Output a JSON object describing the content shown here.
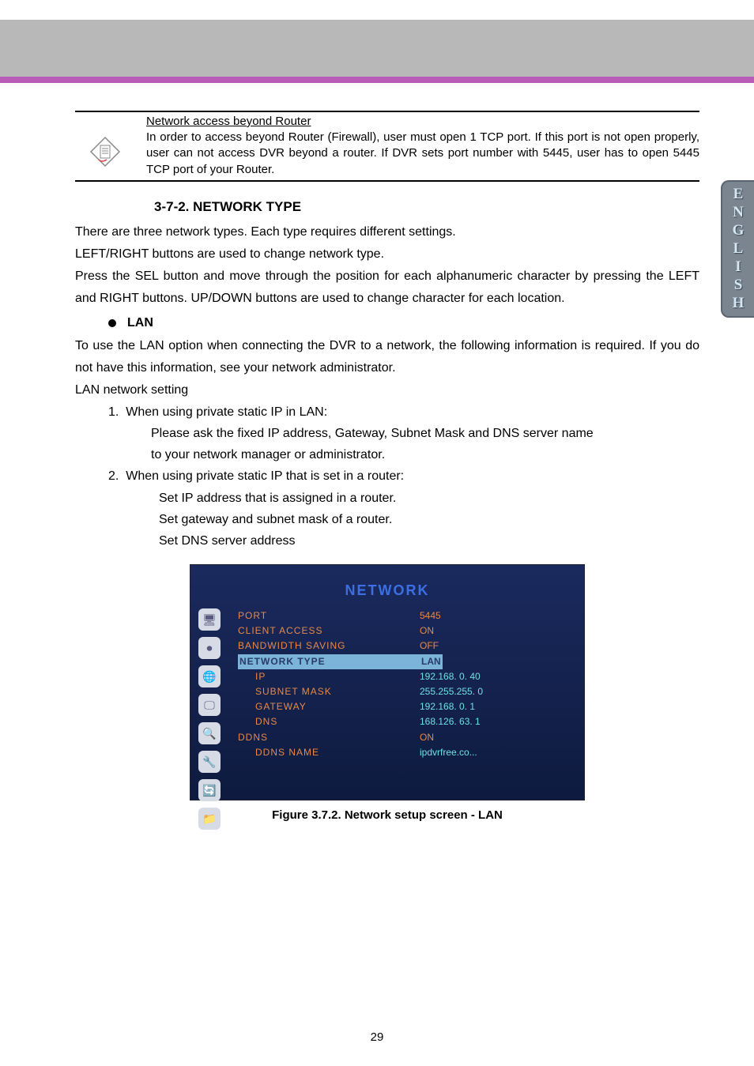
{
  "note": {
    "title": "Network access beyond Router",
    "body": "In order to access beyond Router (Firewall), user must open 1 TCP port. If this port is not open properly, user can not access DVR beyond a router. If DVR sets port number with 5445, user has to open 5445 TCP port of your Router."
  },
  "section_heading": "3-7-2. NETWORK TYPE",
  "para1": "There are three network types. Each type requires different settings.",
  "para2": "LEFT/RIGHT buttons are used to change network type.",
  "para3": "Press the SEL button and move through the position for each alphanumeric character by pressing the LEFT and RIGHT buttons. UP/DOWN buttons are used to change character for each location.",
  "bullet_lan": "LAN",
  "lan_intro": "To use the LAN option when connecting the DVR to a network, the following information is required. If you do not have this information, see your network administrator.",
  "lan_setting_title": "LAN network setting",
  "list1_num": "1.",
  "list1_text": "When using private static IP in LAN:",
  "list1_a": "Please ask the fixed IP address, Gateway, Subnet Mask and DNS server name",
  "list1_b": "to your network manager or administrator.",
  "list2_num": "2.",
  "list2_text": "When using private static IP that is set in a router:",
  "list2_a": "Set IP address that is assigned in a router.",
  "list2_b": "Set gateway and subnet mask of a router.",
  "list2_c": "Set DNS server address",
  "screenshot": {
    "title": "NETWORK",
    "rows": [
      {
        "label": "PORT",
        "value": "5445",
        "sub": false,
        "highlight": false,
        "cyan": false
      },
      {
        "label": "CLIENT ACCESS",
        "value": "ON",
        "sub": false,
        "highlight": false,
        "cyan": false
      },
      {
        "label": "BANDWIDTH SAVING",
        "value": "OFF",
        "sub": false,
        "highlight": false,
        "cyan": false
      },
      {
        "label": "NETWORK TYPE",
        "value": "LAN",
        "sub": false,
        "highlight": true,
        "cyan": false
      },
      {
        "label": "IP",
        "value": "192.168.  0. 40",
        "sub": true,
        "highlight": false,
        "cyan": true
      },
      {
        "label": "SUBNET MASK",
        "value": "255.255.255.  0",
        "sub": true,
        "highlight": false,
        "cyan": true
      },
      {
        "label": "GATEWAY",
        "value": "192.168.  0.  1",
        "sub": true,
        "highlight": false,
        "cyan": true
      },
      {
        "label": "DNS",
        "value": "168.126. 63.  1",
        "sub": true,
        "highlight": false,
        "cyan": true
      },
      {
        "label": "DDNS",
        "value": "ON",
        "sub": false,
        "highlight": false,
        "cyan": false
      },
      {
        "label": "DDNS NAME",
        "value": "ipdvrfree.co...",
        "sub": true,
        "highlight": false,
        "cyan": true
      }
    ],
    "side_icons": [
      "🖥",
      "⏺",
      "🌐",
      "🖵",
      "🔍",
      "🔧",
      "🔄",
      "📁"
    ]
  },
  "figure_caption": "Figure 3.7.2. Network setup screen - LAN",
  "page_number": "29",
  "lang_letters": [
    "E",
    "N",
    "G",
    "L",
    "I",
    "S",
    "H"
  ],
  "colors": {
    "banner_bg": "#b8b8b8",
    "banner_accent": "#b85cb8",
    "tab_bg": "#7a8590",
    "tab_text": "#d4e8f4",
    "screenshot_label": "#e5894a",
    "screenshot_cyan": "#6ee0e0",
    "screenshot_title": "#3b6fe3"
  }
}
